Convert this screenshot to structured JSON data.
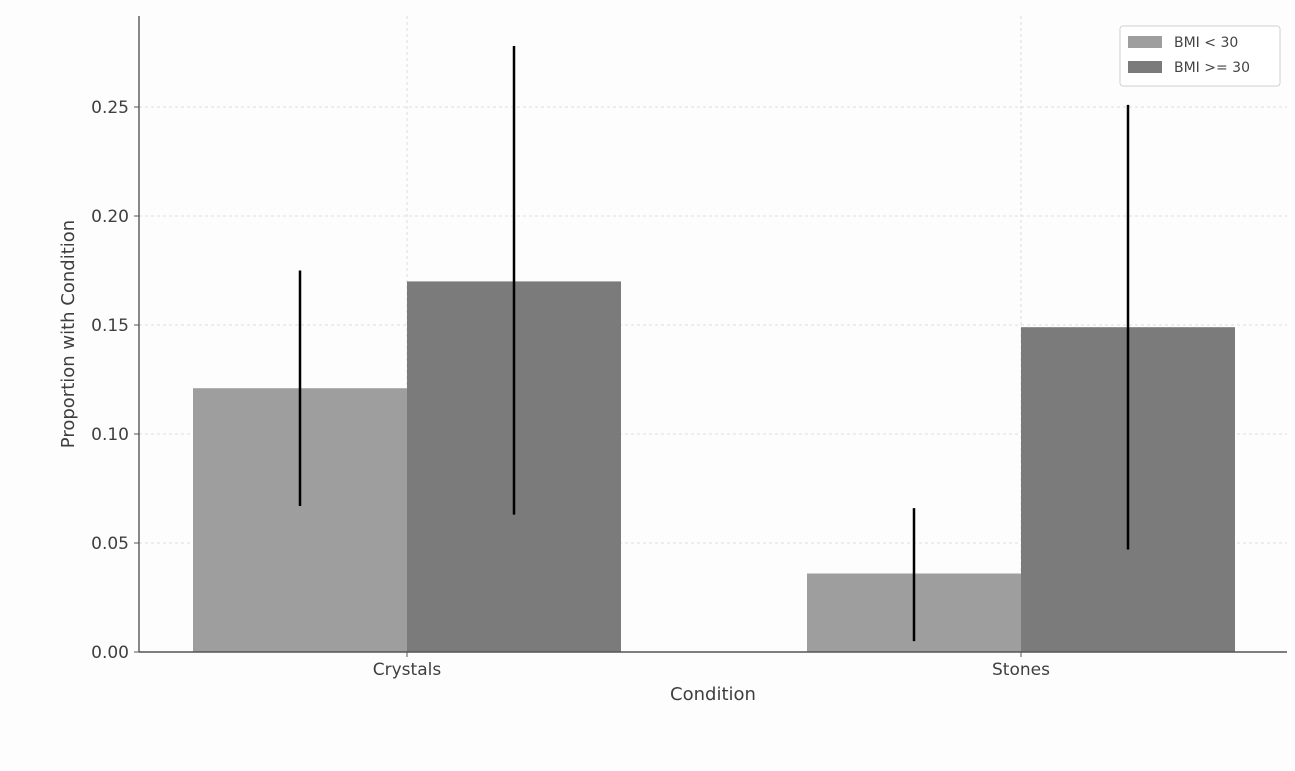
{
  "chart_data": {
    "type": "bar",
    "title": "",
    "xlabel": "Condition",
    "ylabel": "Proportion with Condition",
    "categories": [
      "Crystals",
      "Stones"
    ],
    "series": [
      {
        "name": "BMI < 30",
        "color": "#9e9e9e",
        "values": [
          0.121,
          0.036
        ],
        "error_low": [
          0.067,
          0.005
        ],
        "error_high": [
          0.175,
          0.066
        ]
      },
      {
        "name": "BMI >= 30",
        "color": "#7b7b7b",
        "values": [
          0.17,
          0.149
        ],
        "error_low": [
          0.063,
          0.047
        ],
        "error_high": [
          0.278,
          0.251
        ]
      }
    ],
    "ylim": [
      0,
      0.293
    ],
    "yticks": [
      0.0,
      0.05,
      0.1,
      0.15,
      0.2,
      0.25
    ],
    "ytick_labels": [
      "0.00",
      "0.05",
      "0.10",
      "0.15",
      "0.20",
      "0.25"
    ],
    "grid": true,
    "legend_position": "top-right",
    "error_bar_color": "#000000"
  }
}
